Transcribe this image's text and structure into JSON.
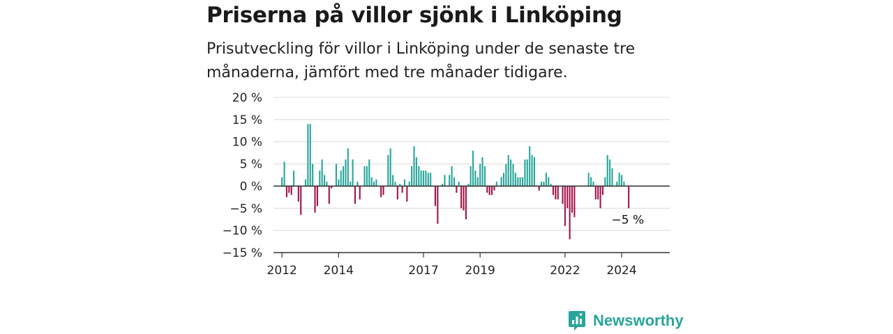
{
  "title": "Priserna på villor sjönk i Linköping",
  "subtitle": "Prisutveckling för villor i Linköping under de senaste tre månaderna, jämfört med tre månader tidigare.",
  "brand": {
    "name": "Newsworthy"
  },
  "colors": {
    "positive": "#26a69a",
    "negative": "#a3134a",
    "grid": "#d8d8d8",
    "axis": "#333333",
    "brand": "#2aa59a"
  },
  "chart_data": {
    "type": "bar",
    "ylim": [
      -15,
      20
    ],
    "yticks": [
      20,
      15,
      10,
      5,
      0,
      -5,
      -10,
      -15
    ],
    "ytick_labels": [
      "20 %",
      "15 %",
      "10 %",
      "5 %",
      "0 %",
      "−5 %",
      "−10 %",
      "−15 %"
    ],
    "xticks": [
      {
        "label": "2012",
        "x": 2012.0
      },
      {
        "label": "2014",
        "x": 2014.0
      },
      {
        "label": "2017",
        "x": 2017.0
      },
      {
        "label": "2019",
        "x": 2019.0
      },
      {
        "label": "2022",
        "x": 2022.0
      },
      {
        "label": "2024",
        "x": 2024.0
      }
    ],
    "x_start": "2012-01",
    "x_domain": [
      2011.7,
      2025.7
    ],
    "values": [
      2,
      5.5,
      -2.5,
      -1.5,
      -2,
      3.5,
      0,
      -3.5,
      -6.5,
      0,
      1.5,
      14,
      14,
      5,
      -6,
      -4.5,
      3.5,
      6,
      2.5,
      1,
      -4,
      -0.5,
      0,
      5,
      1.5,
      3.5,
      4.5,
      6,
      8.5,
      1,
      6,
      -4,
      1,
      -3,
      0,
      4.5,
      4.5,
      6,
      2,
      1,
      1.5,
      0,
      -2.5,
      -2,
      0,
      7,
      8.5,
      2.5,
      1,
      -3,
      0.5,
      -1.5,
      1.5,
      -3.5,
      1,
      4.5,
      9,
      6.5,
      4.5,
      3.5,
      3.5,
      3.5,
      3,
      3,
      0,
      -4.5,
      -8.5,
      0,
      0.5,
      2.5,
      0,
      2.5,
      4.5,
      2,
      -1.5,
      1,
      -5,
      -5.5,
      -7.5,
      0.5,
      4.5,
      8,
      3.5,
      2,
      5,
      6.5,
      4.5,
      -1.5,
      -2,
      -2,
      -1,
      1,
      0,
      2,
      3,
      5,
      7,
      6,
      5,
      3,
      2,
      2,
      2,
      6,
      6,
      9,
      7,
      6.5,
      0,
      -1,
      1,
      1,
      3,
      2,
      0.5,
      -2,
      -3,
      -3,
      0,
      -4,
      -9,
      -5,
      -12,
      -6,
      -7,
      0,
      0,
      0,
      0,
      0,
      3,
      2,
      1,
      -3,
      -3,
      -5,
      -2,
      2,
      7,
      6,
      4,
      0,
      1,
      3,
      2.5,
      1,
      0,
      -5
    ],
    "annotations": [
      {
        "label": "−5 %",
        "anchor": "last"
      }
    ]
  }
}
